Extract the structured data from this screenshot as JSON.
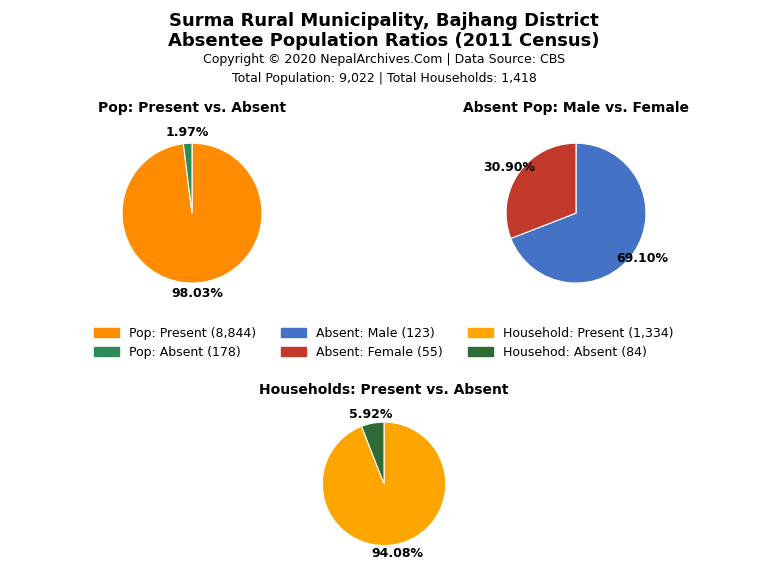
{
  "title": "Surma Rural Municipality, Bajhang District",
  "subtitle": "Absentee Population Ratios (2011 Census)",
  "annotations": [
    "Copyright © 2020 NepalArchives.Com | Data Source: CBS",
    "Total Population: 9,022 | Total Households: 1,418"
  ],
  "legend": "center",
  "chart_data": [
    {
      "type": "pie",
      "title": "Pop: Present vs. Absent",
      "categories": [
        "Pop: Present (8,844)",
        "Pop: Absent (178)"
      ],
      "values": [
        98.03,
        1.97
      ],
      "value_labels": [
        "98.03%",
        "1.97%"
      ],
      "colors": [
        "#FF8C00",
        "#2E8B57"
      ],
      "data_labels": true
    },
    {
      "type": "pie",
      "title": "Absent Pop: Male vs. Female",
      "categories": [
        "Absent: Male (123)",
        "Absent: Female (55)"
      ],
      "values": [
        69.1,
        30.9
      ],
      "value_labels": [
        "69.10%",
        "30.90%"
      ],
      "colors": [
        "#4472C4",
        "#C0392B"
      ],
      "data_labels": true
    },
    {
      "type": "pie",
      "title": "Households: Present vs. Absent",
      "categories": [
        "Household: Present (1,334)",
        "Househod: Absent (84)"
      ],
      "values": [
        94.08,
        5.92
      ],
      "value_labels": [
        "94.08%",
        "5.92%"
      ],
      "colors": [
        "#FFA500",
        "#2E6B37"
      ],
      "data_labels": true
    }
  ]
}
